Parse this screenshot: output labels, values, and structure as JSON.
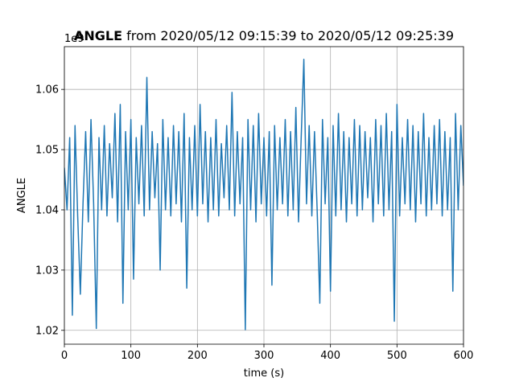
{
  "chart_data": {
    "type": "line",
    "title_bold": "ANGLE",
    "title": "from 2020/05/12 09:15:39 to 2020/05/12 09:25:39",
    "xlabel": "time (s)",
    "ylabel": "ANGLE",
    "y_offset_label": "1e9",
    "xlim": [
      0,
      600
    ],
    "xticks": [
      0,
      100,
      200,
      300,
      400,
      500,
      600
    ],
    "ylim": [
      1.0177,
      1.0671
    ],
    "yticks": [
      1.02,
      1.03,
      1.04,
      1.05,
      1.06
    ],
    "grid": true,
    "x": [
      0,
      4,
      8,
      12,
      16,
      20,
      24,
      28,
      32,
      36,
      40,
      44,
      48,
      52,
      56,
      60,
      64,
      68,
      72,
      76,
      80,
      84,
      88,
      92,
      96,
      100,
      104,
      108,
      112,
      116,
      120,
      124,
      128,
      132,
      136,
      140,
      144,
      148,
      152,
      156,
      160,
      164,
      168,
      172,
      176,
      180,
      184,
      188,
      192,
      196,
      200,
      204,
      208,
      212,
      216,
      220,
      224,
      228,
      232,
      236,
      240,
      244,
      248,
      252,
      256,
      260,
      264,
      268,
      272,
      276,
      280,
      284,
      288,
      292,
      296,
      300,
      304,
      308,
      312,
      316,
      320,
      324,
      328,
      332,
      336,
      340,
      344,
      348,
      352,
      356,
      360,
      364,
      368,
      372,
      376,
      380,
      384,
      388,
      392,
      396,
      400,
      404,
      408,
      412,
      416,
      420,
      424,
      428,
      432,
      436,
      440,
      444,
      448,
      452,
      456,
      460,
      464,
      468,
      472,
      476,
      480,
      484,
      488,
      492,
      496,
      500,
      504,
      508,
      512,
      516,
      520,
      524,
      528,
      532,
      536,
      540,
      544,
      548,
      552,
      556,
      560,
      564,
      568,
      572,
      576,
      580,
      584,
      588,
      592,
      596,
      600
    ],
    "series": [
      {
        "name": "ANGLE",
        "color": "#1f77b4",
        "values": [
          1.047,
          1.04,
          1.052,
          1.0225,
          1.054,
          1.039,
          1.026,
          1.041,
          1.053,
          1.038,
          1.055,
          1.041,
          1.0203,
          1.052,
          1.04,
          1.054,
          1.039,
          1.051,
          1.042,
          1.056,
          1.038,
          1.0575,
          1.0245,
          1.053,
          1.04,
          1.055,
          1.0285,
          1.052,
          1.041,
          1.054,
          1.039,
          1.062,
          1.04,
          1.053,
          1.042,
          1.051,
          1.03,
          1.055,
          1.04,
          1.052,
          1.039,
          1.054,
          1.041,
          1.053,
          1.038,
          1.056,
          1.027,
          1.052,
          1.04,
          1.054,
          1.039,
          1.0575,
          1.041,
          1.053,
          1.038,
          1.052,
          1.04,
          1.055,
          1.039,
          1.051,
          1.042,
          1.054,
          1.04,
          1.0595,
          1.039,
          1.053,
          1.041,
          1.052,
          1.0201,
          1.055,
          1.04,
          1.054,
          1.038,
          1.056,
          1.041,
          1.052,
          1.039,
          1.053,
          1.0275,
          1.054,
          1.04,
          1.052,
          1.041,
          1.055,
          1.039,
          1.053,
          1.04,
          1.057,
          1.038,
          1.052,
          1.065,
          1.041,
          1.054,
          1.039,
          1.053,
          1.04,
          1.0245,
          1.055,
          1.041,
          1.052,
          1.0265,
          1.054,
          1.039,
          1.056,
          1.04,
          1.053,
          1.038,
          1.052,
          1.041,
          1.055,
          1.039,
          1.054,
          1.04,
          1.053,
          1.042,
          1.052,
          1.038,
          1.055,
          1.041,
          1.054,
          1.039,
          1.056,
          1.04,
          1.053,
          1.0215,
          1.0575,
          1.039,
          1.052,
          1.041,
          1.055,
          1.04,
          1.054,
          1.038,
          1.053,
          1.041,
          1.056,
          1.039,
          1.052,
          1.04,
          1.054,
          1.041,
          1.055,
          1.039,
          1.053,
          1.04,
          1.052,
          1.0265,
          1.056,
          1.04,
          1.054,
          1.044
        ]
      }
    ]
  }
}
